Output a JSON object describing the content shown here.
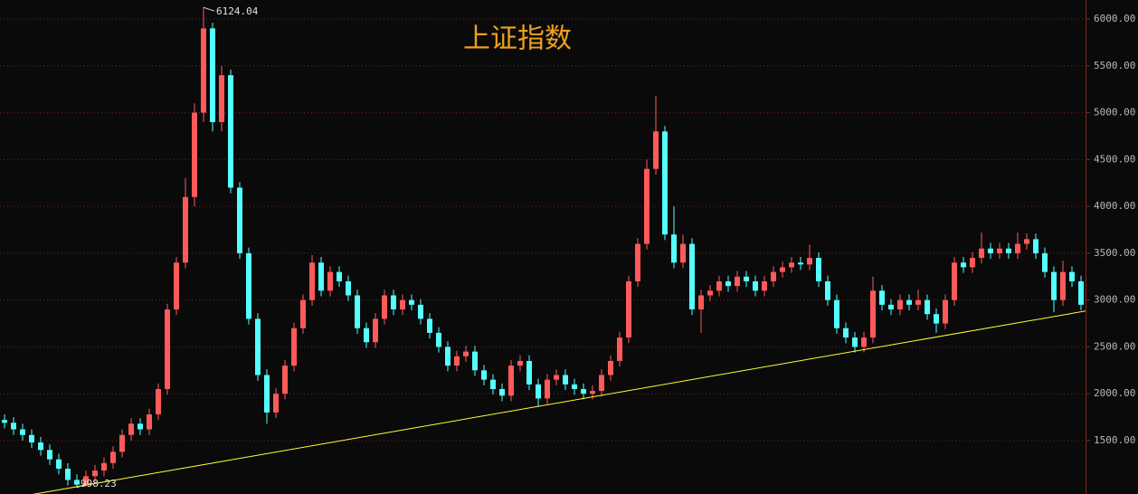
{
  "chart_data": {
    "type": "candlestick",
    "title": "上证指数",
    "up_color": "#ff5a5a",
    "down_color": "#54ffff",
    "grid": true,
    "grid_color": "#7a2020",
    "ylim": [
      930,
      6203
    ],
    "yticks": [
      {
        "value": 1500,
        "label": "1500.00"
      },
      {
        "value": 2000,
        "label": "2000.00"
      },
      {
        "value": 2500,
        "label": "2500.00"
      },
      {
        "value": 3000,
        "label": "3000.00"
      },
      {
        "value": 3500,
        "label": "3500.00"
      },
      {
        "value": 4000,
        "label": "4000.00"
      },
      {
        "value": 4500,
        "label": "4500.00"
      },
      {
        "value": 5000,
        "label": "5000.00"
      },
      {
        "value": 5500,
        "label": "5500.00"
      },
      {
        "value": 6000,
        "label": "6000.00"
      }
    ],
    "trendline": {
      "values": [
        865,
        2883
      ],
      "color": "#ffff30"
    },
    "open": [
      1720,
      1690,
      1620,
      1560,
      1480,
      1400,
      1300,
      1200,
      1080,
      1030,
      1120,
      1180,
      1260,
      1380,
      1560,
      1680,
      1620,
      1780,
      2050,
      2900,
      3400,
      4100,
      5000,
      5900,
      4900,
      5400,
      4200,
      3500,
      2800,
      2200,
      1800,
      2000,
      2300,
      2700,
      3000,
      3400,
      3100,
      3300,
      3200,
      3050,
      2700,
      2550,
      2800,
      3050,
      2900,
      3000,
      2950,
      2800,
      2650,
      2500,
      2300,
      2400,
      2450,
      2250,
      2150,
      2050,
      1980,
      2300,
      2350,
      2100,
      1950,
      2150,
      2200,
      2100,
      2050,
      2000,
      2030,
      2200,
      2350,
      2600,
      3200,
      3600,
      4400,
      4800,
      3700,
      3400,
      3600,
      2900,
      3050,
      3100,
      3200,
      3150,
      3250,
      3200,
      3100,
      3200,
      3300,
      3350,
      3400,
      3380,
      3450,
      3200,
      3000,
      2700,
      2600,
      2500,
      2600,
      3100,
      2950,
      2900,
      3000,
      2950,
      3000,
      2850,
      2750,
      3000,
      3400,
      3350,
      3450,
      3550,
      3500,
      3550,
      3500,
      3600,
      3650,
      3500,
      3300,
      3000,
      3300,
      3200
    ],
    "high": [
      1780,
      1750,
      1680,
      1620,
      1540,
      1460,
      1360,
      1260,
      1140,
      1180,
      1240,
      1320,
      1440,
      1620,
      1740,
      1740,
      1840,
      2110,
      2960,
      3460,
      4300,
      5100,
      6124.04,
      5960,
      5500,
      5460,
      4260,
      3560,
      2860,
      2260,
      2060,
      2360,
      2760,
      3060,
      3480,
      3460,
      3360,
      3360,
      3260,
      3110,
      2760,
      2860,
      3110,
      3110,
      3060,
      3060,
      3010,
      2860,
      2710,
      2560,
      2460,
      2510,
      2510,
      2310,
      2210,
      2110,
      2360,
      2410,
      2410,
      2160,
      2210,
      2260,
      2260,
      2160,
      2110,
      2090,
      2260,
      2410,
      2660,
      3260,
      3660,
      4500,
      5178,
      4860,
      4000,
      3700,
      3660,
      3110,
      3160,
      3260,
      3260,
      3310,
      3310,
      3260,
      3260,
      3360,
      3410,
      3460,
      3460,
      3590,
      3510,
      3260,
      3060,
      2760,
      2660,
      2660,
      3250,
      3160,
      3010,
      3060,
      3060,
      3110,
      3060,
      2910,
      3060,
      3460,
      3460,
      3510,
      3720,
      3610,
      3610,
      3610,
      3720,
      3710,
      3710,
      3560,
      3360,
      3420,
      3360,
      3260
    ],
    "low": [
      1630,
      1560,
      1500,
      1420,
      1340,
      1240,
      1140,
      1020,
      998.23,
      1010,
      1060,
      1120,
      1200,
      1320,
      1500,
      1560,
      1560,
      1720,
      1990,
      2840,
      3340,
      4000,
      4900,
      4800,
      4800,
      4140,
      3440,
      2740,
      2140,
      1680,
      1740,
      1940,
      2240,
      2640,
      2940,
      3040,
      3040,
      3140,
      2990,
      2640,
      2490,
      2490,
      2740,
      2840,
      2840,
      2890,
      2740,
      2590,
      2440,
      2240,
      2240,
      2340,
      2190,
      2090,
      1990,
      1920,
      1920,
      2240,
      2040,
      1860,
      1890,
      2090,
      2040,
      1990,
      1940,
      1940,
      1970,
      2140,
      2290,
      2540,
      3140,
      3540,
      4340,
      3640,
      3340,
      3340,
      2840,
      2650,
      2990,
      3040,
      3090,
      3090,
      3140,
      3040,
      3040,
      3140,
      3240,
      3290,
      3320,
      3320,
      3140,
      2940,
      2640,
      2540,
      2440,
      2440,
      2540,
      2890,
      2840,
      2840,
      2890,
      2890,
      2790,
      2650,
      2690,
      2940,
      3290,
      3290,
      3390,
      3440,
      3440,
      3440,
      3440,
      3540,
      3440,
      3240,
      2870,
      2940,
      3140,
      2890
    ],
    "close": [
      1690,
      1620,
      1560,
      1480,
      1400,
      1300,
      1200,
      1080,
      1030,
      1120,
      1180,
      1260,
      1380,
      1560,
      1680,
      1620,
      1780,
      2050,
      2900,
      3400,
      4100,
      5000,
      5900,
      4900,
      5400,
      4200,
      3500,
      2800,
      2200,
      1800,
      2000,
      2300,
      2700,
      3000,
      3400,
      3100,
      3300,
      3200,
      3050,
      2700,
      2550,
      2800,
      3050,
      2900,
      3000,
      2950,
      2800,
      2650,
      2500,
      2300,
      2400,
      2450,
      2250,
      2150,
      2050,
      1980,
      2300,
      2350,
      2100,
      1950,
      2150,
      2200,
      2100,
      2050,
      2000,
      2030,
      2200,
      2350,
      2600,
      3200,
      3600,
      4400,
      4800,
      3700,
      3400,
      3600,
      2900,
      3050,
      3100,
      3200,
      3150,
      3250,
      3200,
      3100,
      3200,
      3300,
      3350,
      3400,
      3380,
      3450,
      3200,
      3000,
      2700,
      2600,
      2500,
      2600,
      3100,
      2950,
      2900,
      3000,
      2950,
      3000,
      2850,
      2750,
      3000,
      3400,
      3350,
      3450,
      3550,
      3500,
      3550,
      3500,
      3600,
      3650,
      3500,
      3300,
      3000,
      3300,
      3200,
      2950
    ]
  }
}
